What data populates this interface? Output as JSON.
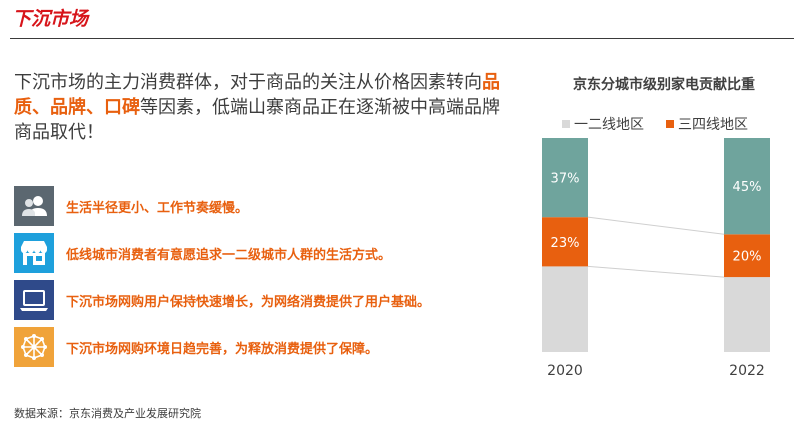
{
  "header": {
    "title": "下沉市场"
  },
  "intro": {
    "prefix": "下沉市场的主力消费群体，对于商品的关注从价格因素转向",
    "highlight": "品质、品牌、口碑",
    "suffix": "等因素，低端山寨商品正在逐渐被中高端品牌商品取代！"
  },
  "items": [
    {
      "icon": "users-icon",
      "color": "#5b6770",
      "text": "生活半径更小、工作节奏缓慢。"
    },
    {
      "icon": "storefront-icon",
      "color": "#1ea0dc",
      "text": "低线城市消费者有意愿追求一二级城市人群的生活方式。"
    },
    {
      "icon": "laptop-icon",
      "color": "#2f4a8a",
      "text": "下沉市场网购用户保持快速增长，为网络消费提供了用户基础。"
    },
    {
      "icon": "network-brain-icon",
      "color": "#f0a33a",
      "text": "下沉市场网购环境日趋完善，为释放消费提供了保障。"
    }
  ],
  "source": "数据来源：京东消费及产业发展研究院",
  "colors": {
    "title_red": "#d7141a",
    "highlight_orange": "#e8600f"
  },
  "chart_data": {
    "type": "bar",
    "stacked": true,
    "title": "京东分城市级别家电贡献比重",
    "categories": [
      "2020",
      "2022"
    ],
    "legend_position": "top",
    "series": [
      {
        "name": "一二线地区",
        "values": [
          null,
          null
        ],
        "color": "#d9d9d9"
      },
      {
        "name": "三四线地区",
        "values": [
          23,
          20
        ],
        "color": "#e8600f",
        "labels": [
          "23%",
          "20%"
        ]
      },
      {
        "name": "",
        "values": [
          37,
          45
        ],
        "color": "#6fa49d",
        "labels": [
          "37%",
          "45%"
        ]
      }
    ],
    "ylim": [
      0,
      100
    ],
    "grid": false
  }
}
